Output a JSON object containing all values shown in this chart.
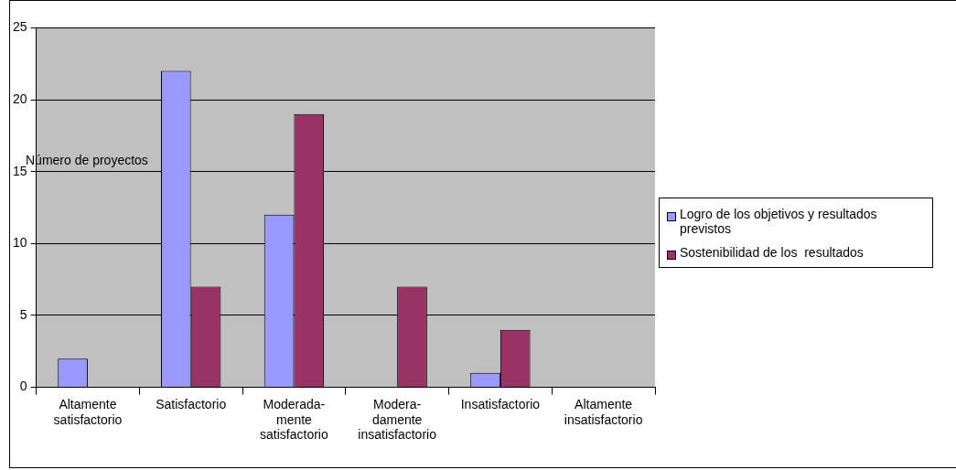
{
  "chart_data": {
    "type": "bar",
    "ylabel": "Número de proyectos",
    "categories": [
      "Altamente\nsatisfactorio",
      "Satisfactorio",
      "Moderada-\nmente\nsatisfactorio",
      "Modera-\ndamente\ninsatisfactorio",
      "Insatisfactorio",
      "Altamente\ninsatisfactorio"
    ],
    "series": [
      {
        "name": "Logro de los objetivos y resultados previstos",
        "color": "#9999ff",
        "values": [
          2,
          22,
          12,
          null,
          1,
          null
        ]
      },
      {
        "name": "Sostenibilidad de los  resultados",
        "color": "#993366",
        "values": [
          null,
          7,
          19,
          7,
          4,
          null
        ]
      }
    ],
    "ylim": [
      0,
      25
    ],
    "yticks": [
      0,
      5,
      10,
      15,
      20,
      25
    ],
    "grid": "y",
    "legend": "right"
  }
}
